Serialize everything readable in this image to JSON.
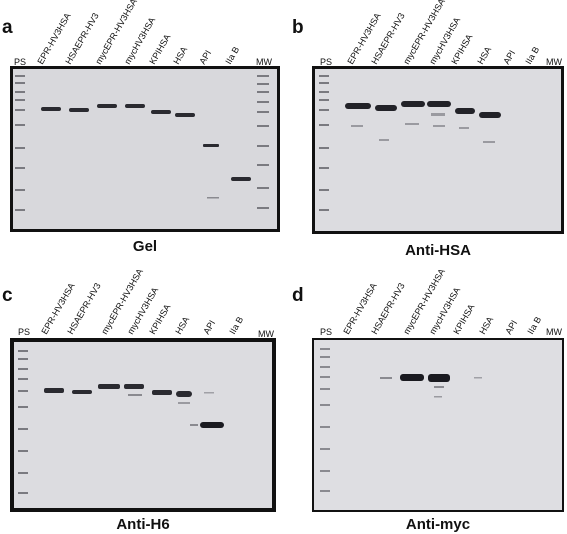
{
  "panels": [
    {
      "letter": "a",
      "caption": "Gel",
      "ps": "PS",
      "mw": "MW",
      "lanes": [
        "EPR-HV3HSA",
        "HSAEPR-HV3",
        "mycEPR-HV3HSA",
        "mycHV3HSA",
        "KPIHSA",
        "HSA",
        "API",
        "IIa B"
      ]
    },
    {
      "letter": "b",
      "caption": "Anti-HSA",
      "ps": "PS",
      "mw": "MW",
      "lanes": [
        "EPR-HV3HSA",
        "HSAEPR-HV3",
        "mycEPR-HV3HSA",
        "mycHV3HSA",
        "KPIHSA",
        "HSA",
        "API",
        "IIa B"
      ]
    },
    {
      "letter": "c",
      "caption": "Anti-H6",
      "ps": "PS",
      "mw": "MW",
      "lanes": [
        "EPR-HV3HSA",
        "HSAEPR-HV3",
        "mycEPR-HV3HSA",
        "mycHV3HSA",
        "KPIHSA",
        "HSA",
        "API",
        "IIa B"
      ]
    },
    {
      "letter": "d",
      "caption": "Anti-myc",
      "ps": "PS",
      "mw": "MW",
      "lanes": [
        "EPR-HV3HSA",
        "HSAEPR-HV3",
        "mycEPR-HV3HSA",
        "mycHV3HSA",
        "KPIHSA",
        "HSA",
        "API",
        "IIa B"
      ]
    }
  ]
}
